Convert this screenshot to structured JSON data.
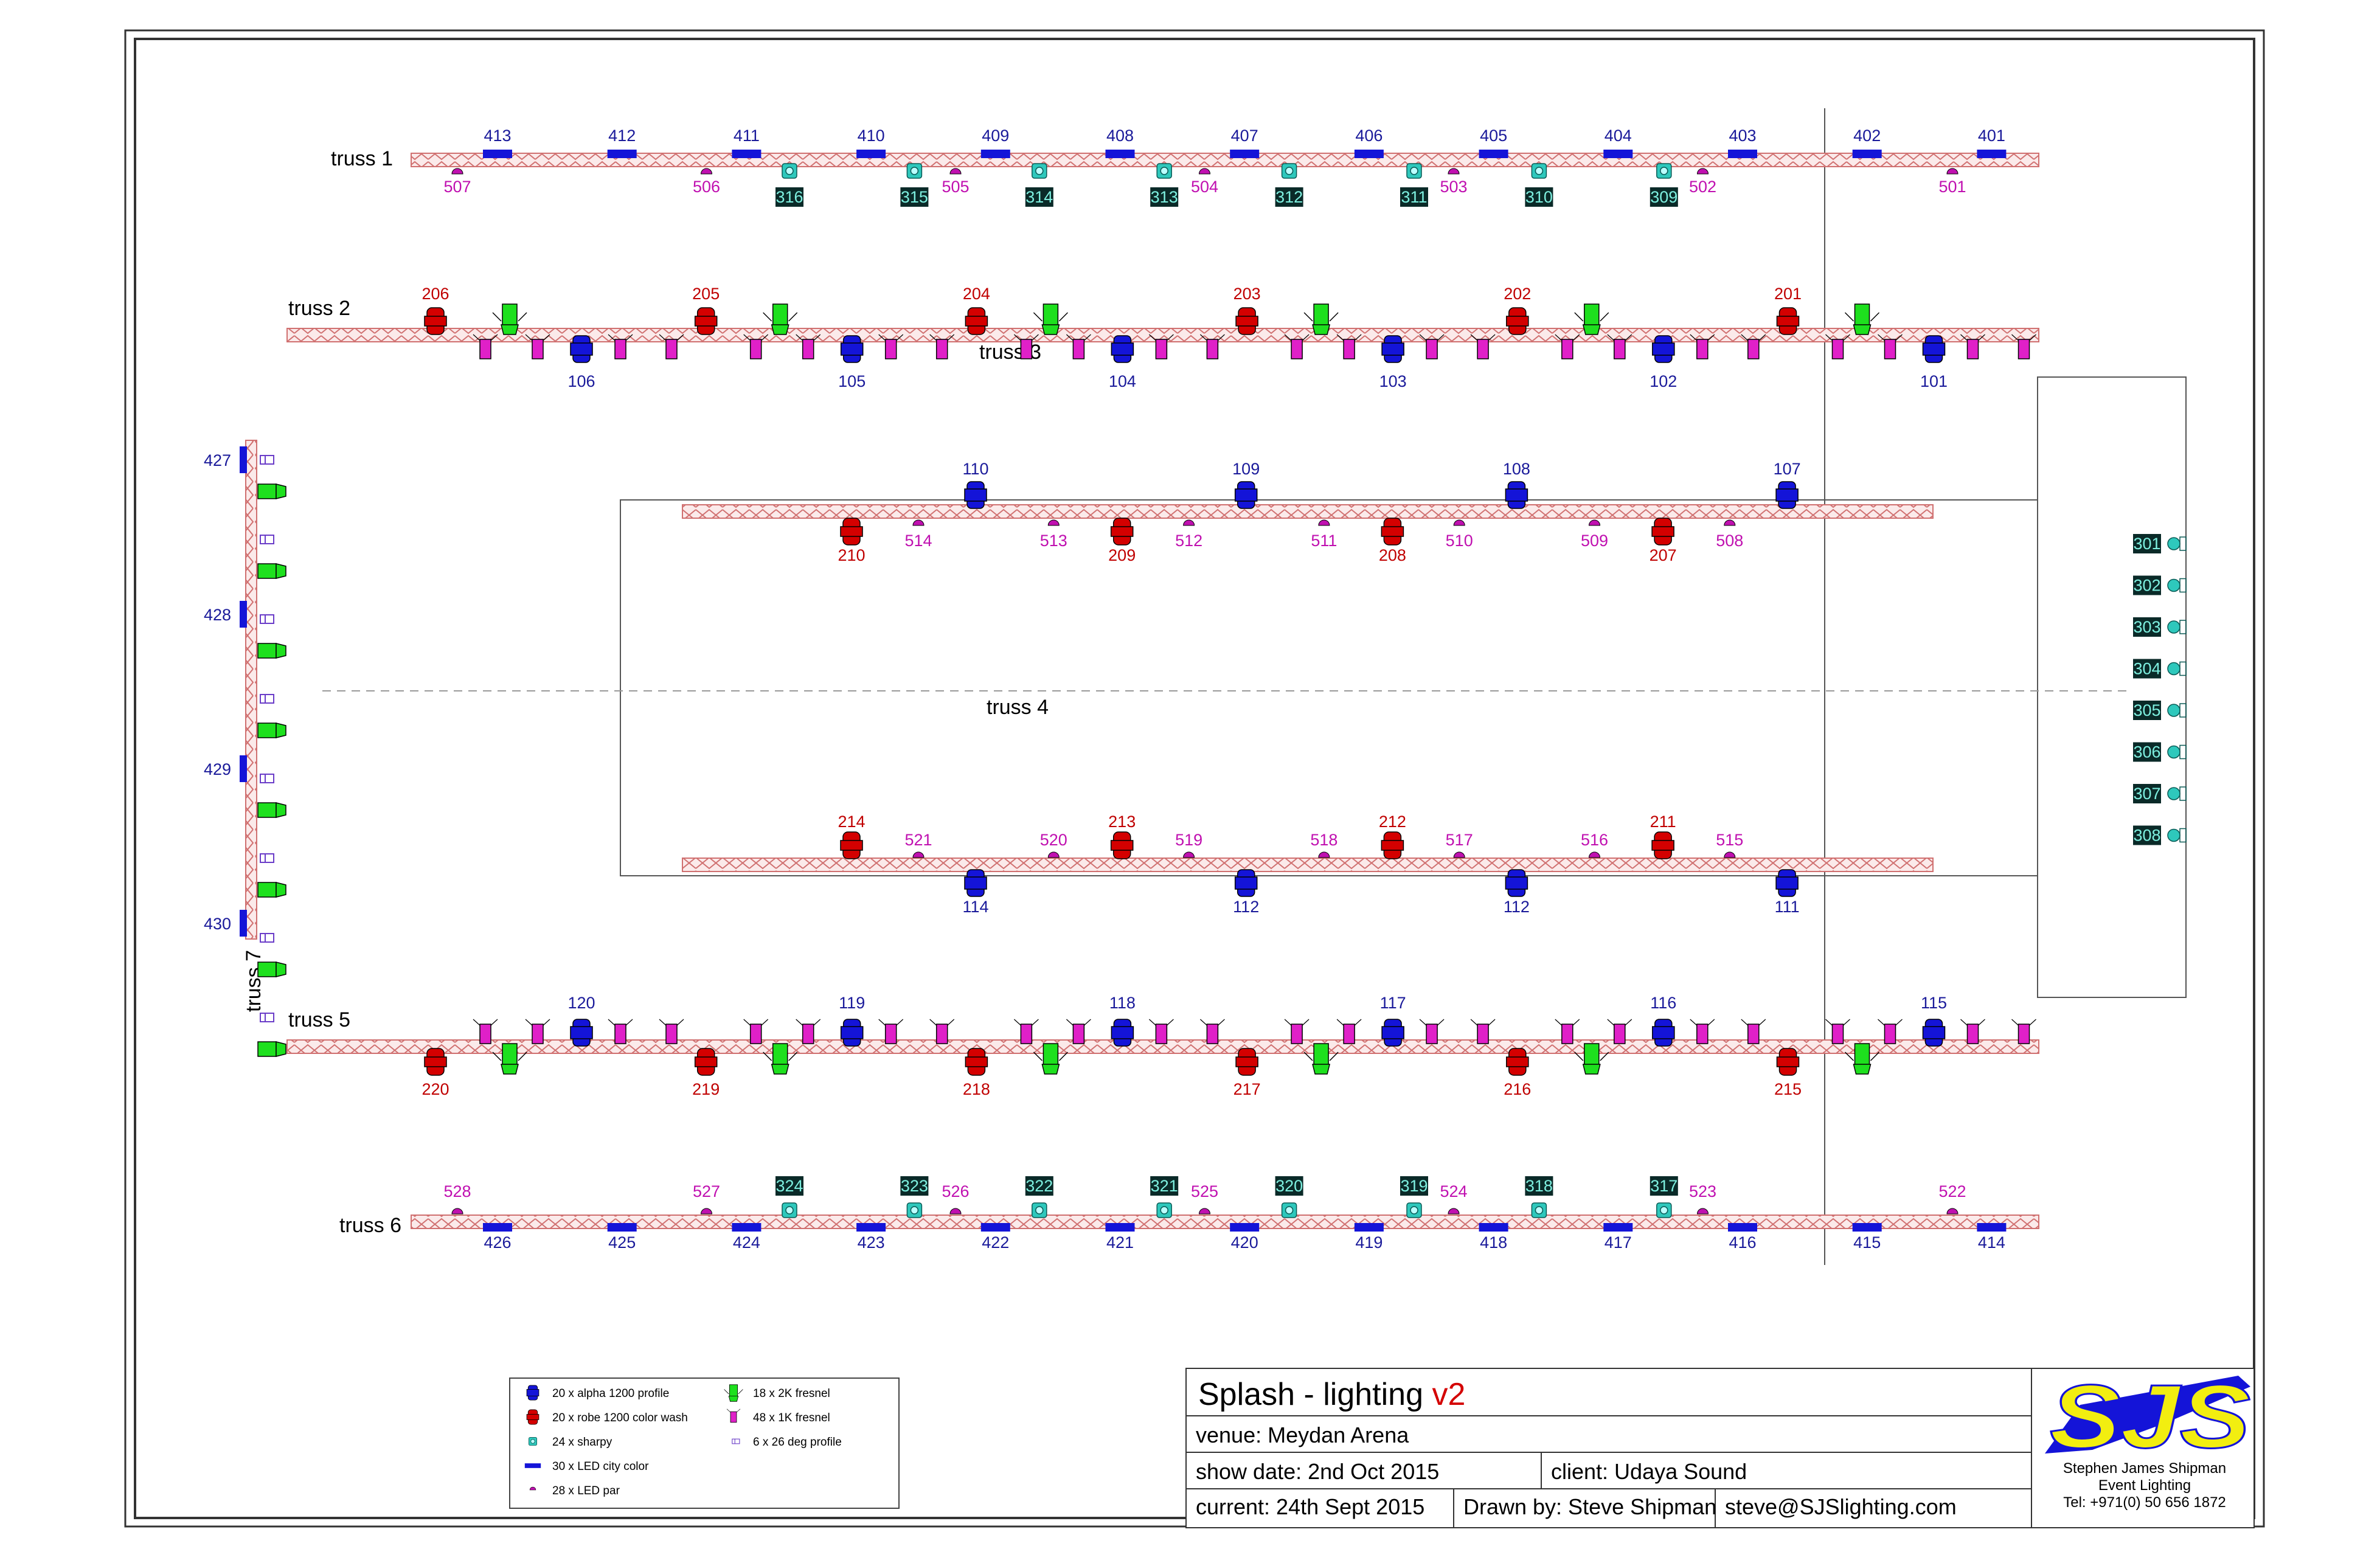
{
  "colors": {
    "profile": "#1414d8",
    "wash": "#d40000",
    "sharpy": "#2ec8bc",
    "city": "#1414d8",
    "par": "#c010b0",
    "fresnel2k": "#1ee01e",
    "fresnel1k": "#e020c8",
    "deg26": "#6a3cc8",
    "truss": "#d07070",
    "blueText": "#1a1a9a",
    "redText": "#c00000",
    "magText": "#c010b0",
    "sharpyTagBg": "#0a2a28",
    "sharpyTagText": "#7ef0e0"
  },
  "trusses": {
    "t1": "truss 1",
    "t2": "truss 2",
    "t3": "truss 3",
    "t4": "truss 4",
    "t5": "truss 5",
    "t6": "truss 6",
    "t7": "truss 7"
  },
  "truss1": {
    "city": [
      "413",
      "412",
      "411",
      "410",
      "409",
      "408",
      "407",
      "406",
      "405",
      "404",
      "403",
      "402",
      "401"
    ],
    "par": [
      "507",
      "506",
      "505",
      "504",
      "503",
      "502",
      "501"
    ],
    "sharpy": [
      "316",
      "315",
      "314",
      "313",
      "312",
      "311",
      "310",
      "309"
    ]
  },
  "truss2": {
    "wash": [
      "206",
      "205",
      "204",
      "203",
      "202",
      "201"
    ],
    "profile": [
      "106",
      "105",
      "104",
      "103",
      "102",
      "101"
    ]
  },
  "truss3": {
    "profile": [
      "110",
      "109",
      "108",
      "107"
    ],
    "wash": [
      "210",
      "209",
      "208",
      "207"
    ],
    "par": [
      "514",
      "513",
      "512",
      "511",
      "510",
      "509",
      "508"
    ]
  },
  "truss4": {
    "wash": [
      "214",
      "213",
      "212",
      "211"
    ],
    "par": [
      "521",
      "520",
      "519",
      "518",
      "517",
      "516",
      "515"
    ],
    "profile": [
      "114",
      "112",
      "112",
      "111"
    ]
  },
  "truss5": {
    "profile": [
      "120",
      "119",
      "118",
      "117",
      "116",
      "115"
    ],
    "wash": [
      "220",
      "219",
      "218",
      "217",
      "216",
      "215"
    ]
  },
  "truss6": {
    "par": [
      "528",
      "527",
      "526",
      "525",
      "524",
      "523",
      "522"
    ],
    "sharpy": [
      "324",
      "323",
      "322",
      "321",
      "320",
      "319",
      "318",
      "317"
    ],
    "city": [
      "426",
      "425",
      "424",
      "423",
      "422",
      "421",
      "420",
      "419",
      "418",
      "417",
      "416",
      "415",
      "414"
    ]
  },
  "truss7": {
    "city": [
      "427",
      "428",
      "429",
      "430"
    ]
  },
  "stage": {
    "sharpy": [
      "301",
      "302",
      "303",
      "304",
      "305",
      "306",
      "307",
      "308"
    ]
  },
  "legend": [
    {
      "icon": "profile",
      "text": "20 x alpha 1200 profile"
    },
    {
      "icon": "wash",
      "text": "20 x robe 1200 color wash"
    },
    {
      "icon": "sharpy",
      "text": "24 x sharpy"
    },
    {
      "icon": "city",
      "text": "30 x LED city color"
    },
    {
      "icon": "par",
      "text": "28 x LED par"
    },
    {
      "icon": "fresnel2k",
      "text": "18 x 2K fresnel"
    },
    {
      "icon": "fresnel1k",
      "text": "48 x 1K fresnel"
    },
    {
      "icon": "deg26",
      "text": "6 x 26 deg profile"
    }
  ],
  "titleblock": {
    "title": "Splash - lighting ",
    "version": "v2",
    "venue": "venue: Meydan Arena",
    "show_date": "show date: 2nd Oct 2015",
    "client": "client: Udaya Sound",
    "current": "current: 24th Sept 2015",
    "drawn_by": "Drawn by: Steve Shipman",
    "email": "steve@SJSlighting.com"
  },
  "logo": {
    "mark": "SJS",
    "name": "Stephen James Shipman",
    "tagline": "Event Lighting",
    "tel": "Tel: +971(0) 50 656 1872"
  }
}
